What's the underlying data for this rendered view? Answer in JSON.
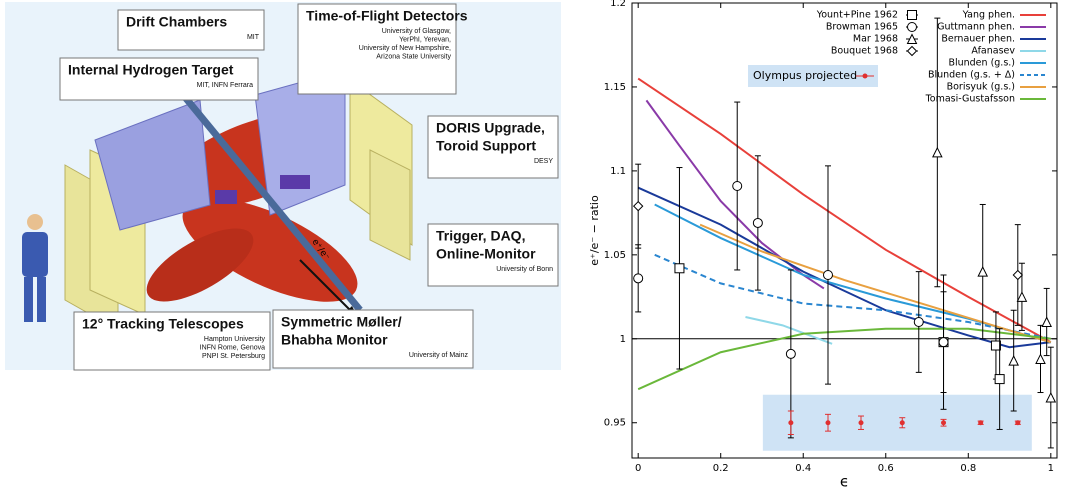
{
  "diagram": {
    "boxes": [
      {
        "title": [
          "Drift Chambers"
        ],
        "sub": [
          "MIT"
        ]
      },
      {
        "title": [
          "Time-of-Flight Detectors"
        ],
        "sub": [
          "University of Glasgow,",
          "YerPhI, Yerevan,",
          "University of New Hampshire,",
          "Arizona State University"
        ]
      },
      {
        "title": [
          "Internal Hydrogen Target"
        ],
        "sub": [
          "MIT, INFN Ferrara"
        ]
      },
      {
        "title": [
          "DORIS Upgrade,",
          "Toroid Support"
        ],
        "sub": [
          "DESY"
        ]
      },
      {
        "title": [
          "Trigger, DAQ,",
          "Online-Monitor"
        ],
        "sub": [
          "University of Bonn"
        ]
      },
      {
        "title": [
          "12° Tracking Telescopes"
        ],
        "sub": [
          "Hampton University",
          "INFN Rome, Genova",
          "PNPI St. Petersburg"
        ]
      },
      {
        "title": [
          "Symmetric Møller/",
          "Bhabha Monitor"
        ],
        "sub": [
          "University of Mainz"
        ]
      }
    ],
    "beam_label": "e⁺/e⁻"
  },
  "chart_data": {
    "type": "scatter",
    "x_label": "ϵ",
    "y_label": "e⁺/e⁻ − ratio",
    "xlim": [
      -0.015,
      1.015
    ],
    "ylim": [
      0.929,
      1.2
    ],
    "xticks": [
      0,
      0.2,
      0.4,
      0.6,
      0.8,
      1
    ],
    "yticks": [
      0.95,
      1,
      1.05,
      1.1,
      1.15,
      1.2
    ],
    "reference_line": 1,
    "series": [
      {
        "name": "Yount+Pine 1962",
        "marker": "square",
        "color": "#000000",
        "x": [
          0.1,
          0.74,
          0.867,
          0.876
        ],
        "values": [
          1.042,
          0.998,
          0.996,
          0.976
        ],
        "errors": [
          0.06,
          0.04,
          0.02,
          0.03
        ]
      },
      {
        "name": "Browman 1965",
        "marker": "circle",
        "color": "#000000",
        "x": [
          0.0,
          0.24,
          0.29,
          0.37,
          0.46,
          0.68,
          0.74
        ],
        "values": [
          1.036,
          1.091,
          1.069,
          0.991,
          1.038,
          1.01,
          0.998
        ],
        "errors": [
          0.02,
          0.05,
          0.04,
          0.05,
          0.065,
          0.03,
          0.03
        ]
      },
      {
        "name": "Mar 1968",
        "marker": "triangle",
        "color": "#000000",
        "x": [
          0.725,
          0.835,
          0.91,
          0.93,
          0.975,
          0.99,
          1.0
        ],
        "values": [
          1.111,
          1.04,
          0.987,
          1.025,
          0.988,
          1.01,
          0.965
        ],
        "errors": [
          0.08,
          0.04,
          0.03,
          0.02,
          0.02,
          0.02,
          0.03
        ]
      },
      {
        "name": "Bouquet 1968",
        "marker": "diamond",
        "color": "#000000",
        "x": [
          0.0,
          0.92
        ],
        "values": [
          1.079,
          1.038
        ],
        "errors": [
          0.025,
          0.03
        ]
      },
      {
        "name": "Olympus projected",
        "marker": "dot",
        "color": "#e03030",
        "x": [
          0.37,
          0.46,
          0.54,
          0.64,
          0.74,
          0.83,
          0.92
        ],
        "values": [
          0.95,
          0.95,
          0.95,
          0.95,
          0.95,
          0.95,
          0.95
        ],
        "errors": [
          0.007,
          0.005,
          0.004,
          0.003,
          0.002,
          0.001,
          0.001
        ]
      }
    ],
    "lines": [
      {
        "name": "Yang phen.",
        "color": "#e8403a",
        "dash": false,
        "x": [
          0,
          0.2,
          0.4,
          0.6,
          0.8,
          1
        ],
        "values": [
          1.155,
          1.122,
          1.086,
          1.053,
          1.025,
          0.998
        ]
      },
      {
        "name": "Guttmann phen.",
        "color": "#8a3aa8",
        "dash": false,
        "x": [
          0.02,
          0.1,
          0.2,
          0.3,
          0.4,
          0.45
        ],
        "values": [
          1.142,
          1.115,
          1.082,
          1.057,
          1.038,
          1.03
        ]
      },
      {
        "name": "Bernauer phen.",
        "color": "#1a3a9a",
        "dash": false,
        "x": [
          0,
          0.2,
          0.4,
          0.6,
          0.8,
          0.9,
          1
        ],
        "values": [
          1.09,
          1.068,
          1.04,
          1.017,
          1.002,
          0.995,
          0.998
        ]
      },
      {
        "name": "Afanasev",
        "color": "#8fd8e8",
        "dash": false,
        "x": [
          0.26,
          0.35,
          0.47
        ],
        "values": [
          1.013,
          1.008,
          0.997
        ]
      },
      {
        "name": "Blunden (g.s.)",
        "color": "#2a9ad8",
        "dash": false,
        "x": [
          0.04,
          0.2,
          0.4,
          0.6,
          0.8,
          1
        ],
        "values": [
          1.08,
          1.06,
          1.038,
          1.024,
          1.012,
          0.998
        ]
      },
      {
        "name": "Blunden (g.s. + Δ)",
        "color": "#2a86d0",
        "dash": true,
        "x": [
          0.04,
          0.2,
          0.4,
          0.6,
          0.8,
          1
        ],
        "values": [
          1.05,
          1.033,
          1.021,
          1.017,
          1.01,
          1.0
        ]
      },
      {
        "name": "Borisyuk (g.s.)",
        "color": "#e8a040",
        "dash": false,
        "x": [
          0.15,
          0.3,
          0.5,
          0.7,
          0.9,
          1
        ],
        "values": [
          1.068,
          1.052,
          1.035,
          1.02,
          1.005,
          0.998
        ]
      },
      {
        "name": "Tomasi-Gustafsson",
        "color": "#6ab83a",
        "dash": false,
        "x": [
          0,
          0.2,
          0.4,
          0.6,
          0.8,
          1
        ],
        "values": [
          0.97,
          0.992,
          1.003,
          1.006,
          1.006,
          1.0
        ]
      }
    ]
  }
}
